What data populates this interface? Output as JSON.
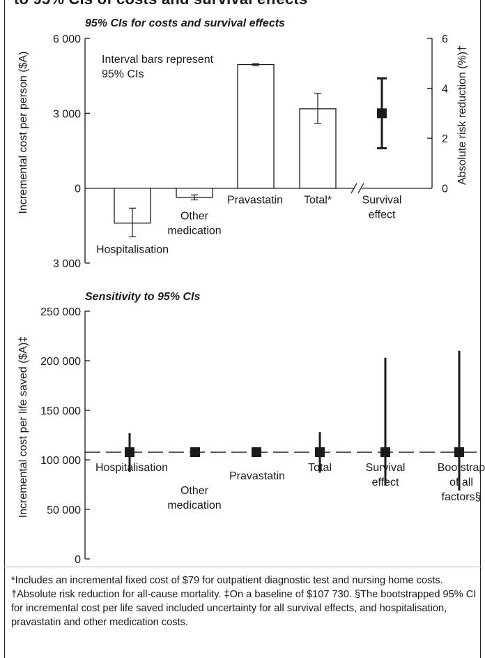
{
  "page": {
    "title": "to 95% CIs of costs and survival effects",
    "footnote": "*Includes an incremental fixed cost of $79 for outpatient diagnostic test and nursing home costs. †Absolute risk reduction for all-cause mortality. ‡On a baseline of $107 730. §The bootstrapped 95% CI for incremental cost per life saved included uncertainty for all survival effects, and hospitalisation, pravastatin and other medication costs."
  },
  "chart_data": [
    {
      "type": "bar",
      "title": "95% CIs for costs and survival effects",
      "ylabel": "Incremental cost per person ($A)",
      "y2label": "Absolute risk reduction (%)†",
      "ylim": [
        -3000,
        6000
      ],
      "y2lim": [
        0,
        6
      ],
      "yticks": [
        {
          "value": 6000,
          "label": "6 000"
        },
        {
          "value": 3000,
          "label": "3 000"
        },
        {
          "value": 0,
          "label": "0"
        },
        {
          "value": -3000,
          "label": "3 000"
        }
      ],
      "y2ticks": [
        {
          "value": 6,
          "label": "6"
        },
        {
          "value": 4,
          "label": "4"
        },
        {
          "value": 2,
          "label": "2"
        },
        {
          "value": 0,
          "label": "0"
        }
      ],
      "annotation": "Interval bars represent 95% CIs",
      "bars": [
        {
          "label": "Hospitalisation",
          "value": -1400,
          "ci": [
            -1950,
            -800
          ]
        },
        {
          "label": "Other medication",
          "value": -370,
          "ci": [
            -470,
            -270
          ]
        },
        {
          "label": "Pravastatin",
          "value": 4950,
          "ci": [
            4910,
            4990
          ]
        },
        {
          "label": "Total*",
          "value": 3180,
          "ci": [
            2600,
            3800
          ]
        }
      ],
      "survival_effect": {
        "label": "Survival effect",
        "value": 3.0,
        "ci": [
          1.6,
          4.4
        ],
        "axis": "right"
      }
    },
    {
      "type": "scatter",
      "title": "Sensitivity to 95% CIs",
      "ylabel": "Incremental cost per life saved ($A)‡",
      "ylim": [
        0,
        250000
      ],
      "yticks": [
        {
          "value": 250000,
          "label": "250 000"
        },
        {
          "value": 200000,
          "label": "200 000"
        },
        {
          "value": 150000,
          "label": "150 000"
        },
        {
          "value": 100000,
          "label": "100 000"
        },
        {
          "value": 50000,
          "label": "50 000"
        },
        {
          "value": 0,
          "label": "0"
        }
      ],
      "baseline": 107730,
      "points": [
        {
          "label": "Hospitalisation",
          "value": 107730,
          "ci": [
            88000,
            127000
          ]
        },
        {
          "label": "Other medication",
          "value": 107730,
          "ci": [
            107730,
            107730
          ]
        },
        {
          "label": "Pravastatin",
          "value": 107730,
          "ci": [
            107730,
            107730
          ]
        },
        {
          "label": "Total",
          "value": 107730,
          "ci": [
            87000,
            128000
          ]
        },
        {
          "label": "Survival effect",
          "value": 107730,
          "ci": [
            74000,
            203000
          ]
        },
        {
          "label": "Bootstrap of all factors§",
          "value": 107730,
          "ci": [
            69000,
            210000
          ]
        }
      ]
    }
  ]
}
